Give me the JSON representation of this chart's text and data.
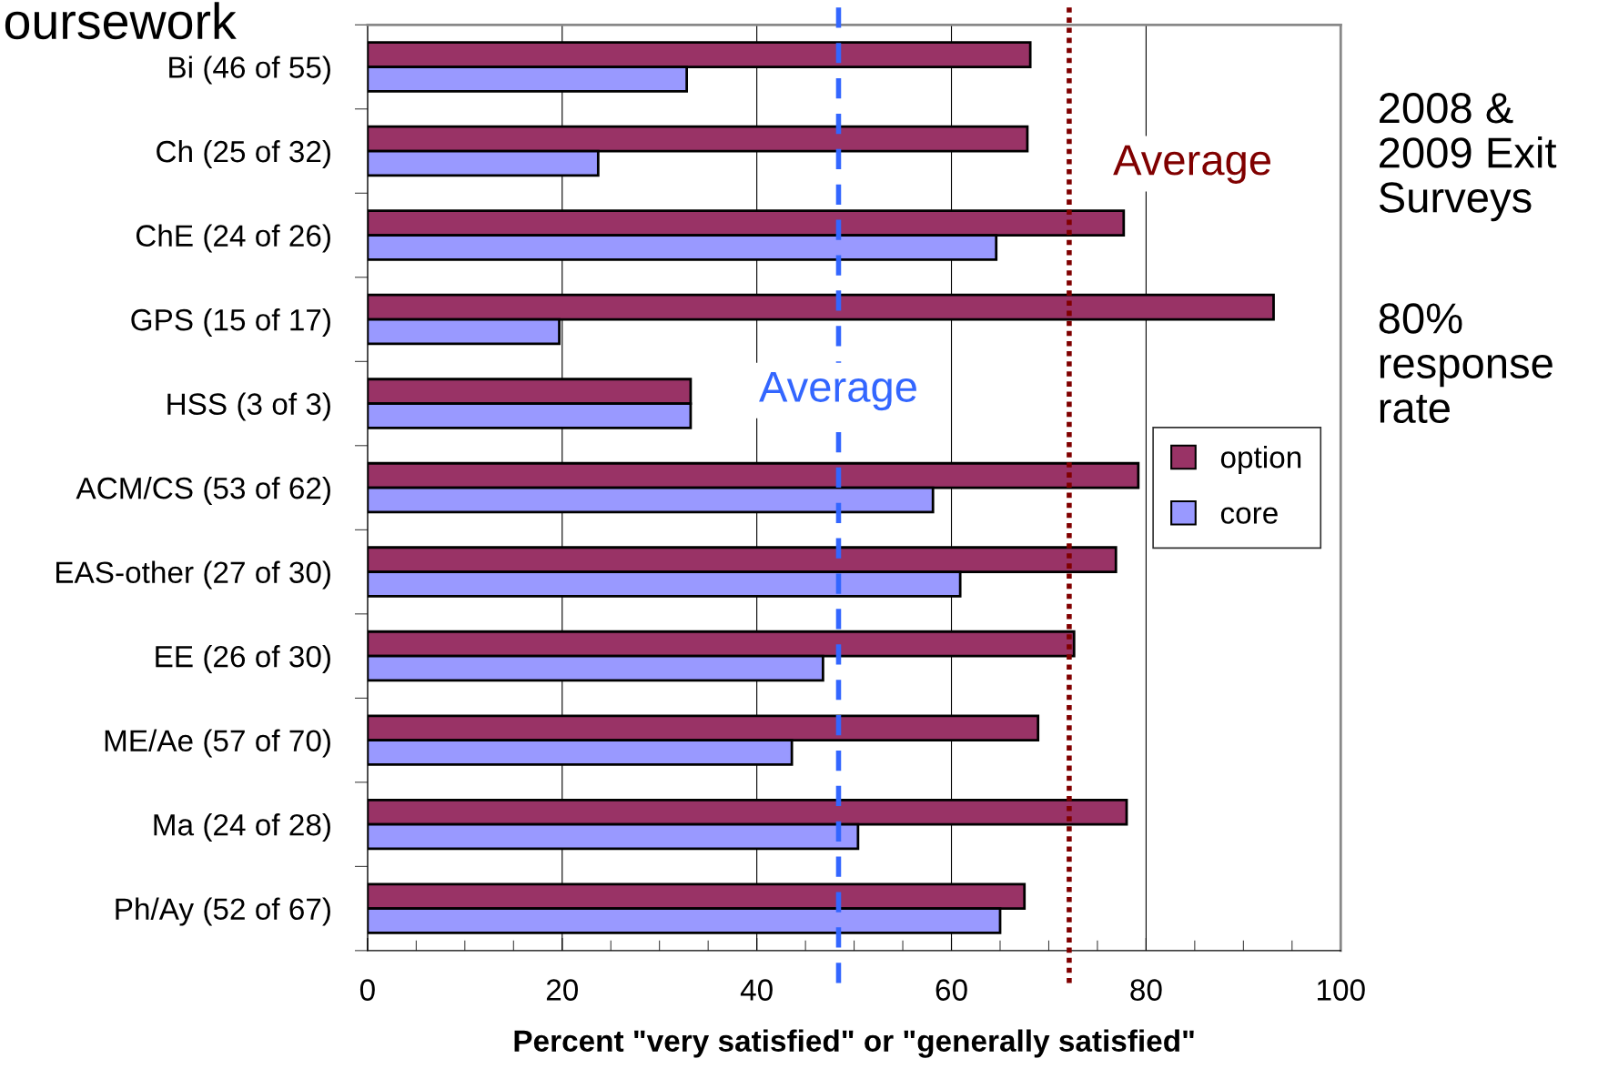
{
  "chart_data": {
    "type": "bar",
    "orientation": "horizontal",
    "title": "oursework",
    "xlabel": "Percent \"very satisfied\" or \"generally satisfied\"",
    "categories": [
      "Bi (46 of 55)",
      "Ch (25 of 32)",
      "ChE (24 of 26)",
      "GPS (15 of 17)",
      "HSS (3 of 3)",
      "ACM/CS (53 of 62)",
      "EAS-other (27 of 30)",
      "EE (26 of 30)",
      "ME/Ae (57 of 70)",
      "Ma (24 of 28)",
      "Ph/Ay (52 of 67)"
    ],
    "series": [
      {
        "name": "option",
        "color": "#993366",
        "values": [
          68.1,
          67.8,
          77.7,
          93.1,
          33.2,
          79.2,
          76.9,
          72.6,
          68.9,
          78.0,
          67.5
        ]
      },
      {
        "name": "core",
        "color": "#9999ff",
        "values": [
          32.8,
          23.7,
          64.6,
          19.7,
          33.2,
          58.1,
          60.9,
          46.8,
          43.6,
          50.4,
          65.0
        ]
      }
    ],
    "xlim": [
      0,
      100
    ],
    "xticks": [
      0,
      20,
      40,
      60,
      80,
      100
    ],
    "grid": "x",
    "legend": "right",
    "ref_lines": [
      {
        "axis": "x",
        "value": 48.4,
        "label": "Average",
        "color": "#3366ff",
        "line_style": "dashed"
      },
      {
        "axis": "x",
        "value": 72.1,
        "label": "Average",
        "color": "#800000",
        "line_style": "dotted"
      }
    ],
    "annotations": [
      "2008 & 2009 Exit Surveys",
      "80% response rate"
    ]
  }
}
